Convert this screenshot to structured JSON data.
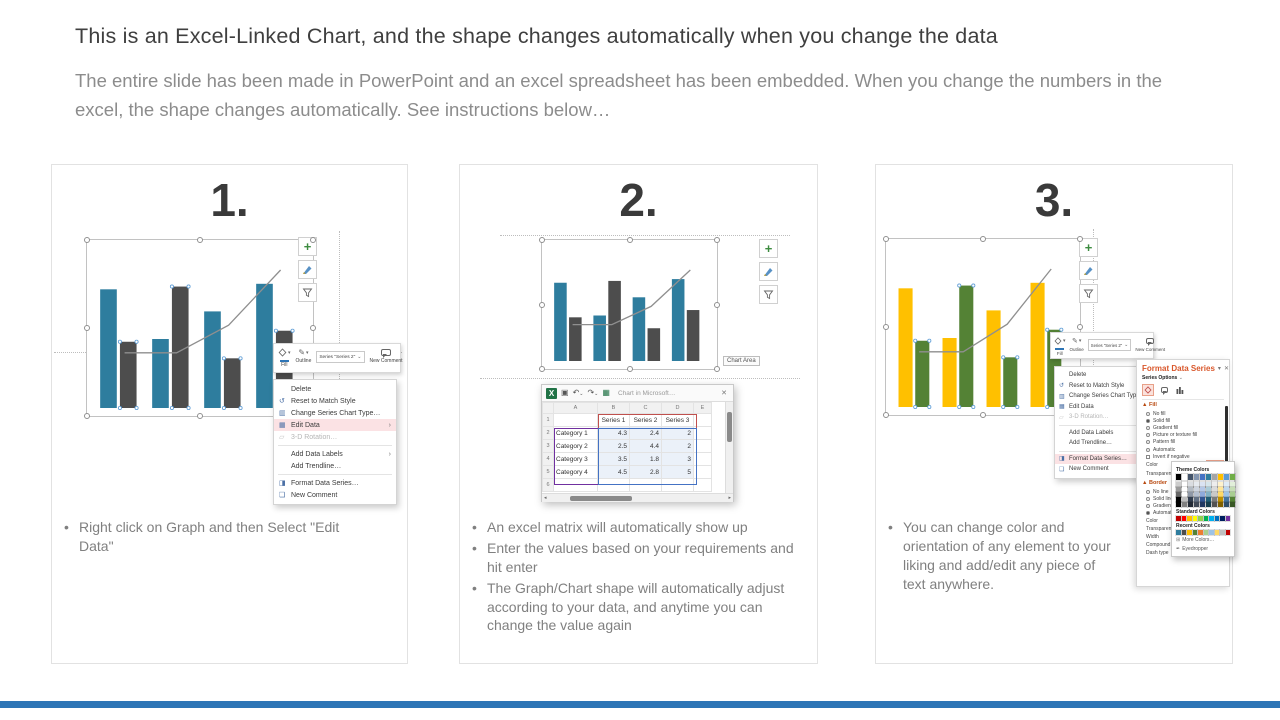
{
  "page": {
    "title": "This is an Excel-Linked Chart, and the shape changes automatically when you change the data",
    "subtitle": "The entire slide has been made in PowerPoint and an excel spreadsheet has been embedded. When you change the numbers in the excel, the shape changes automatically. See instructions below…",
    "accent_bar_color": "#2E75B6"
  },
  "chart_data": {
    "type": "bar",
    "categories": [
      "Category 1",
      "Category 2",
      "Category 3",
      "Category 4"
    ],
    "series": [
      {
        "name": "Series 1",
        "type": "bar",
        "values": [
          4.3,
          2.5,
          3.5,
          4.5
        ]
      },
      {
        "name": "Series 2",
        "type": "bar",
        "values": [
          2.4,
          4.4,
          1.8,
          2.8
        ]
      },
      {
        "name": "Series 3",
        "type": "line",
        "values": [
          2,
          2,
          3,
          5
        ]
      }
    ],
    "ylim": [
      0,
      5
    ],
    "grid": false,
    "legend": "none",
    "colors": {
      "step1_series1": "#2E7D9E",
      "step1_series2": "#4D4D4D",
      "step3_series1": "#FFC000",
      "step3_series2": "#548235",
      "line": "#8f8f8f"
    }
  },
  "cards": [
    {
      "number": "1.",
      "bullets": [
        "Right click on Graph and then Select \"Edit Data\""
      ],
      "mini_toolbar": {
        "fill": "Fill",
        "outline": "Outline",
        "series_dropdown": "Series \"Series 2\"",
        "new_comment": "New Comment"
      },
      "context_menu": {
        "items": [
          {
            "label": "Delete",
            "icon": "none"
          },
          {
            "label": "Reset to Match Style",
            "icon": "reset"
          },
          {
            "label": "Change Series Chart Type…",
            "icon": "chart-type"
          },
          {
            "label": "Edit Data",
            "icon": "edit-data",
            "highlighted": true,
            "submenu": true
          },
          {
            "label": "3-D Rotation…",
            "icon": "rotation",
            "disabled": true
          },
          {
            "separator": true
          },
          {
            "label": "Add Data Labels",
            "icon": "none",
            "submenu": true
          },
          {
            "label": "Add Trendline…",
            "icon": "none"
          },
          {
            "separator": true
          },
          {
            "label": "Format Data Series…",
            "icon": "format"
          },
          {
            "label": "New Comment",
            "icon": "comment"
          }
        ]
      }
    },
    {
      "number": "2.",
      "bullets": [
        "An excel matrix will automatically show up",
        "Enter the values based on your requirements and hit enter",
        "The Graph/Chart shape will automatically adjust according to your data, and anytime you can change the value again"
      ],
      "chart_area_tooltip": "Chart Area",
      "excel_window": {
        "title": "Chart in Microsoft…",
        "column_headers": [
          "A",
          "B",
          "C",
          "D",
          "E"
        ],
        "rows": [
          [
            "",
            "Series 1",
            "Series 2",
            "Series 3",
            ""
          ],
          [
            "Category 1",
            "4.3",
            "2.4",
            "2",
            ""
          ],
          [
            "Category 2",
            "2.5",
            "4.4",
            "2",
            ""
          ],
          [
            "Category 3",
            "3.5",
            "1.8",
            "3",
            ""
          ],
          [
            "Category 4",
            "4.5",
            "2.8",
            "5",
            ""
          ],
          [
            "",
            "",
            "",
            "",
            ""
          ]
        ]
      }
    },
    {
      "number": "3.",
      "bullets": [
        "You can change color and orientation of any element to your liking and add/edit any piece of text anywhere."
      ],
      "mini_toolbar": {
        "fill": "Fill",
        "outline": "Outline",
        "series_dropdown": "Series \"Series 2\"",
        "new_comment": "New Comment"
      },
      "context_menu": {
        "items": [
          {
            "label": "Delete",
            "icon": "none"
          },
          {
            "label": "Reset to Match Style",
            "icon": "reset"
          },
          {
            "label": "Change Series Chart Type…",
            "icon": "chart-type"
          },
          {
            "label": "Edit Data",
            "icon": "edit-data",
            "submenu": true
          },
          {
            "label": "3-D Rotation…",
            "icon": "rotation",
            "disabled": true
          },
          {
            "separator": true
          },
          {
            "label": "Add Data Labels",
            "icon": "none",
            "submenu": true
          },
          {
            "label": "Add Trendline…",
            "icon": "none"
          },
          {
            "separator": true
          },
          {
            "label": "Format Data Series…",
            "icon": "format",
            "highlighted": true
          },
          {
            "label": "New Comment",
            "icon": "comment"
          }
        ]
      },
      "format_panel": {
        "title": "Format Data Series",
        "series_options_label": "Series Options",
        "fill_section": "Fill",
        "fill_options": [
          "No fill",
          "Solid fill",
          "Gradient fill",
          "Picture or texture fill",
          "Pattern fill",
          "Automatic",
          "Invert if negative"
        ],
        "selected_fill": "Solid fill",
        "color_label": "Color",
        "transparency_label": "Transparency",
        "border_section": "Border",
        "border_options": [
          "No line",
          "Solid line",
          "Gradient line",
          "Automatic"
        ],
        "selected_border": "Automatic",
        "extra_rows": [
          "Color",
          "Transparency",
          "Width",
          "Compound type",
          "Dash type"
        ],
        "palette": {
          "theme_label": "Theme Colors",
          "standard_label": "Standard Colors",
          "recent_label": "Recent Colors",
          "more_colors": "More Colors…",
          "eyedropper": "Eyedropper",
          "theme": [
            "#000000",
            "#FFFFFF",
            "#44546A",
            "#8496B0",
            "#4472C4",
            "#2E7D9E",
            "#A5A5A5",
            "#FFC000",
            "#5B9BD5",
            "#70AD47"
          ],
          "standard": [
            "#C00000",
            "#FF0000",
            "#FFC000",
            "#FFFF00",
            "#92D050",
            "#00B050",
            "#00B0F0",
            "#0070C0",
            "#002060",
            "#7030A0"
          ],
          "recent": [
            "#2E7D9E",
            "#4D4D4D",
            "#FFC000",
            "#548235",
            "#ED7D31",
            "#A9D18E",
            "#9DC3E6",
            "#FFD966",
            "#BFBFBF",
            "#C00000"
          ]
        }
      }
    }
  ]
}
